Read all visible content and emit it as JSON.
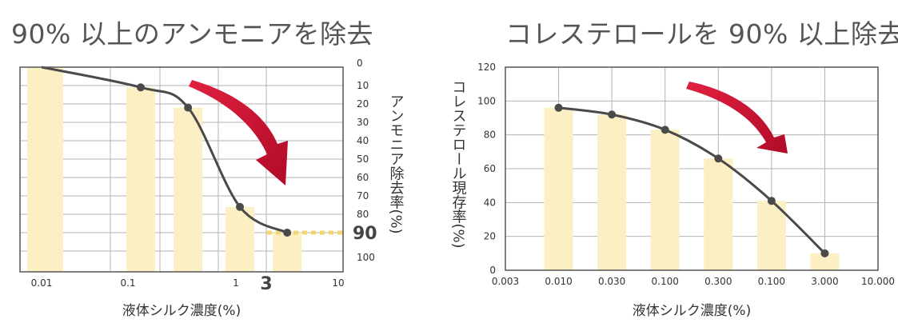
{
  "chart_data": [
    {
      "type": "bar",
      "title": "90% 以上のアンモニアを除去",
      "xlabel": "液体シルク濃度(%)",
      "ylabel": "アンモニア除去率(%)",
      "x_ticks": [
        "0.01",
        "0.1",
        "1",
        "3",
        "10"
      ],
      "y_ticks": [
        "0",
        "10",
        "20",
        "30",
        "40",
        "50",
        "60",
        "70",
        "80",
        "90",
        "100"
      ],
      "ylim": [
        0,
        100
      ],
      "y_inverted": true,
      "highlight_label": "90",
      "bars": [
        {
          "x": 0.01,
          "value": 0
        },
        {
          "x": 0.1,
          "value": 11
        },
        {
          "x": 0.3,
          "value": 22
        },
        {
          "x": 1,
          "value": 76
        },
        {
          "x": 3,
          "value": 90
        }
      ],
      "line": [
        {
          "x": 0.01,
          "y": 0
        },
        {
          "x": 0.1,
          "y": 11
        },
        {
          "x": 0.3,
          "y": 22
        },
        {
          "x": 1,
          "y": 76
        },
        {
          "x": 3,
          "y": 90
        }
      ],
      "grid": true
    },
    {
      "type": "bar",
      "title": "コレステロールを 90% 以上除去",
      "xlabel": "液体シルク濃度(%)",
      "ylabel": "コレステロール現存率(%)",
      "x_ticks": [
        "0.003",
        "0.010",
        "0.030",
        "0.100",
        "0.300",
        "0.100",
        "3.000",
        "10.000"
      ],
      "y_ticks": [
        "0",
        "20",
        "40",
        "60",
        "80",
        "100",
        "120"
      ],
      "ylim": [
        0,
        120
      ],
      "bars": [
        {
          "x": "0.010",
          "value": 96
        },
        {
          "x": "0.030",
          "value": 92
        },
        {
          "x": "0.100",
          "value": 83
        },
        {
          "x": "0.300",
          "value": 66
        },
        {
          "x": "0.100",
          "value": 41
        },
        {
          "x": "3.000",
          "value": 10
        }
      ],
      "line": [
        96,
        92,
        83,
        66,
        41,
        10
      ],
      "grid": true
    }
  ],
  "colors": {
    "bar": "#fcefc3",
    "line": "#4a4a4a",
    "grid": "#b3b3b3",
    "frame": "#555555",
    "arrow": "#c8102e",
    "highlight": "#f5d76e",
    "title": "#555555"
  }
}
